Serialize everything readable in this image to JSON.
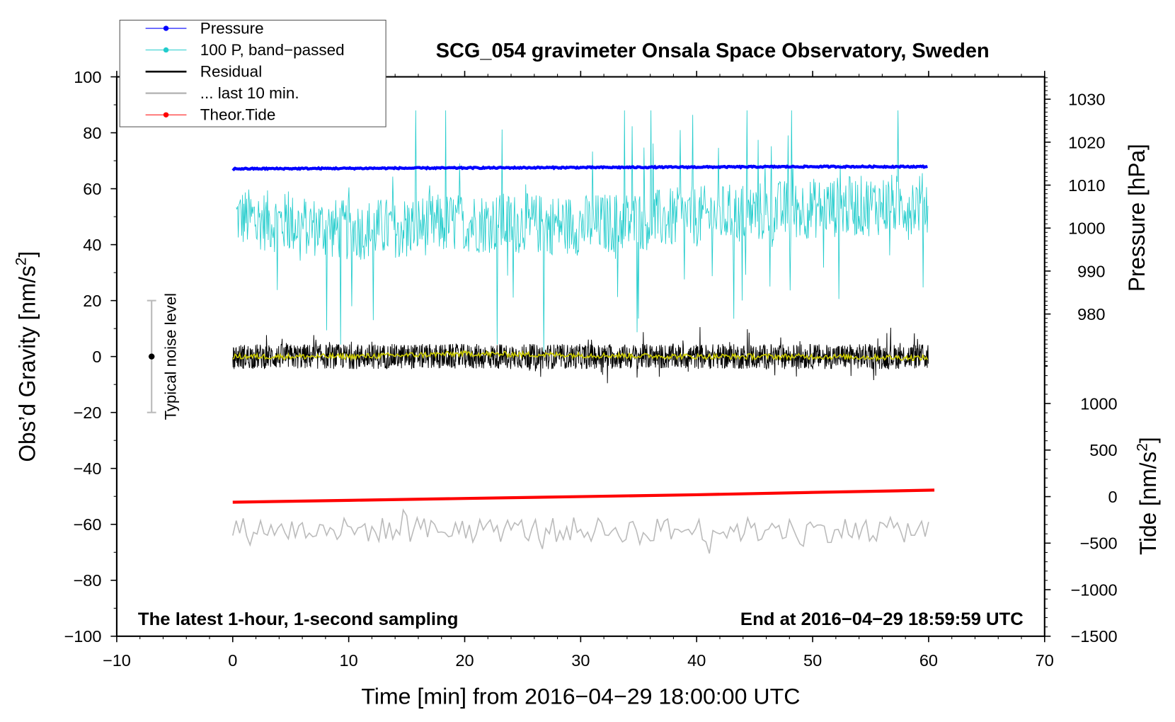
{
  "chart_data": {
    "type": "line",
    "title": "SCG_054 gravimeter Onsala Space Observatory, Sweden",
    "xlabel": "Time [min] from 2016−04−29 18:00:00 UTC",
    "ylabel_left": "Obs’d Gravity [nm/s",
    "ylabel_left_sup": "2",
    "ylabel_left_end": "]",
    "ylabel_right_pressure": "Pressure [hPa]",
    "ylabel_right_tide": "Tide [nm/s",
    "ylabel_right_tide_sup": "2",
    "ylabel_right_tide_end": "]",
    "xlim": [
      -10,
      70
    ],
    "ylim": [
      -100,
      100
    ],
    "pressure_lim": [
      980,
      1030
    ],
    "tide_lim": [
      -1500,
      1000
    ],
    "xticks": [
      "−10",
      "0",
      "10",
      "20",
      "30",
      "40",
      "50",
      "60",
      "70"
    ],
    "yticks": [
      "100",
      "80",
      "60",
      "40",
      "20",
      "0",
      "−20",
      "−40",
      "−60",
      "−80",
      "−100"
    ],
    "pressure_ticks": [
      "1030",
      "1020",
      "1010",
      "1000",
      "990",
      "980"
    ],
    "tide_ticks": [
      "1000",
      "500",
      "0",
      "−500",
      "−1000",
      "−1500"
    ],
    "annotation_left": "The latest 1-hour, 1-second sampling",
    "annotation_right": "End at 2016−04−29 18:59:59 UTC",
    "noise_label": "Typical noise level",
    "noise_bar": {
      "center": 0,
      "low": -20,
      "high": 20
    },
    "legend": [
      {
        "label": "Pressure",
        "color": "#0000ff",
        "marker": true
      },
      {
        "label": "100 P, band−passed",
        "color": "#22cccc",
        "marker": true
      },
      {
        "label": "Residual",
        "color": "#000000",
        "marker": false
      },
      {
        "label": "... last 10 min.",
        "color": "#bbbbbb",
        "marker": false
      },
      {
        "label": "Theor.Tide",
        "color": "#ff0000",
        "marker": true
      }
    ],
    "series": [
      {
        "name": "Pressure",
        "axis": "pressure",
        "x": [
          0,
          10,
          20,
          30,
          40,
          50,
          60
        ],
        "values": [
          1013.8,
          1013.9,
          1014.0,
          1014.1,
          1014.2,
          1014.3,
          1014.3
        ]
      },
      {
        "name": "100 P, band-passed",
        "axis": "gravity",
        "x": [
          0,
          10,
          20,
          30,
          40,
          50,
          60
        ],
        "values": [
          50,
          45,
          48,
          47,
          50,
          53,
          55
        ],
        "range": [
          0,
          88
        ]
      },
      {
        "name": "Residual",
        "axis": "gravity",
        "x": [
          0,
          10,
          20,
          30,
          40,
          50,
          60
        ],
        "values": [
          0,
          0,
          0,
          0,
          0,
          0,
          0
        ],
        "range": [
          -9,
          9
        ]
      },
      {
        "name": "Residual smoothed",
        "color": "#cccc00",
        "axis": "gravity",
        "x": [
          0,
          10,
          20,
          30,
          40,
          50,
          60
        ],
        "values": [
          0,
          0,
          1,
          0.5,
          0,
          0,
          -0.5
        ]
      },
      {
        "name": "... last 10 min.",
        "axis": "gravity",
        "x": [
          0,
          10,
          20,
          30,
          40,
          50,
          60
        ],
        "values": [
          -62,
          -62,
          -62,
          -62,
          -62,
          -62,
          -62
        ],
        "range": [
          -68,
          -53
        ]
      },
      {
        "name": "Theor.Tide",
        "axis": "tide",
        "x": [
          0,
          10,
          20,
          30,
          40,
          50,
          60.5
        ],
        "values": [
          -60,
          -40,
          -20,
          0,
          20,
          45,
          70
        ]
      }
    ]
  }
}
